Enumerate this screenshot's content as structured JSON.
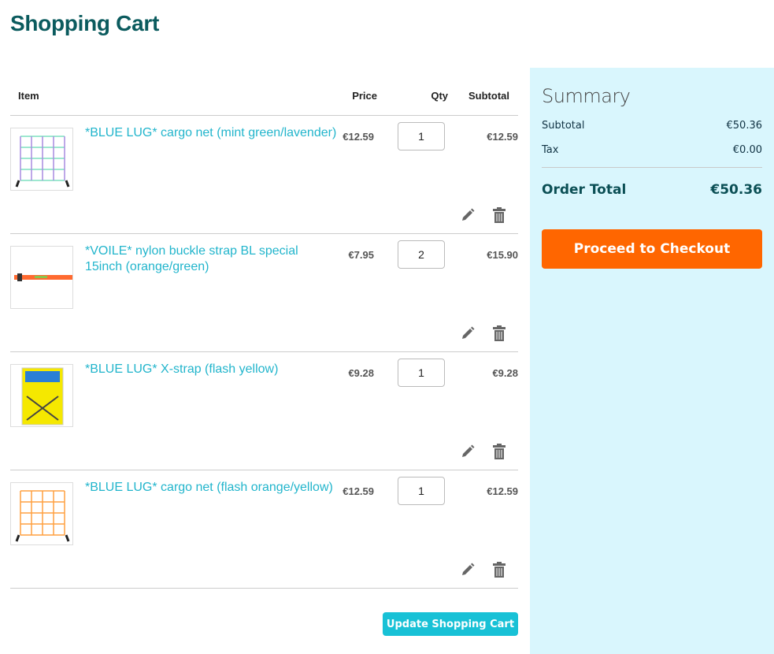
{
  "page_title": "Shopping Cart",
  "table": {
    "headers": {
      "item": "Item",
      "price": "Price",
      "qty": "Qty",
      "subtotal": "Subtotal"
    }
  },
  "items": [
    {
      "name": "*BLUE LUG* cargo net (mint green/lavender)",
      "price": "€12.59",
      "qty": "1",
      "subtotal": "€12.59",
      "image": "mint/lavender cargo net"
    },
    {
      "name": "*VOILE* nylon buckle strap BL special 15inch (orange/green)",
      "price": "€7.95",
      "qty": "2",
      "subtotal": "€15.90",
      "image": "orange strap"
    },
    {
      "name": "*BLUE LUG* X-strap (flash yellow)",
      "price": "€9.28",
      "qty": "1",
      "subtotal": "€9.28",
      "image": "yellow X-strap package"
    },
    {
      "name": "*BLUE LUG* cargo net (flash orange/yellow)",
      "price": "€12.59",
      "qty": "1",
      "subtotal": "€12.59",
      "image": "orange cargo net"
    }
  ],
  "update_button": "Update Shopping Cart",
  "summary": {
    "title": "Summary",
    "subtotal_label": "Subtotal",
    "subtotal": "€50.36",
    "tax_label": "Tax",
    "tax": "€0.00",
    "total_label": "Order Total",
    "total": "€50.36",
    "checkout_button": "Proceed to Checkout"
  },
  "colors": {
    "title": "#0b5b5e",
    "link": "#22b5cc",
    "checkout": "#ff6600",
    "update": "#18c1d6",
    "summary_bg": "#d9f6fd"
  }
}
